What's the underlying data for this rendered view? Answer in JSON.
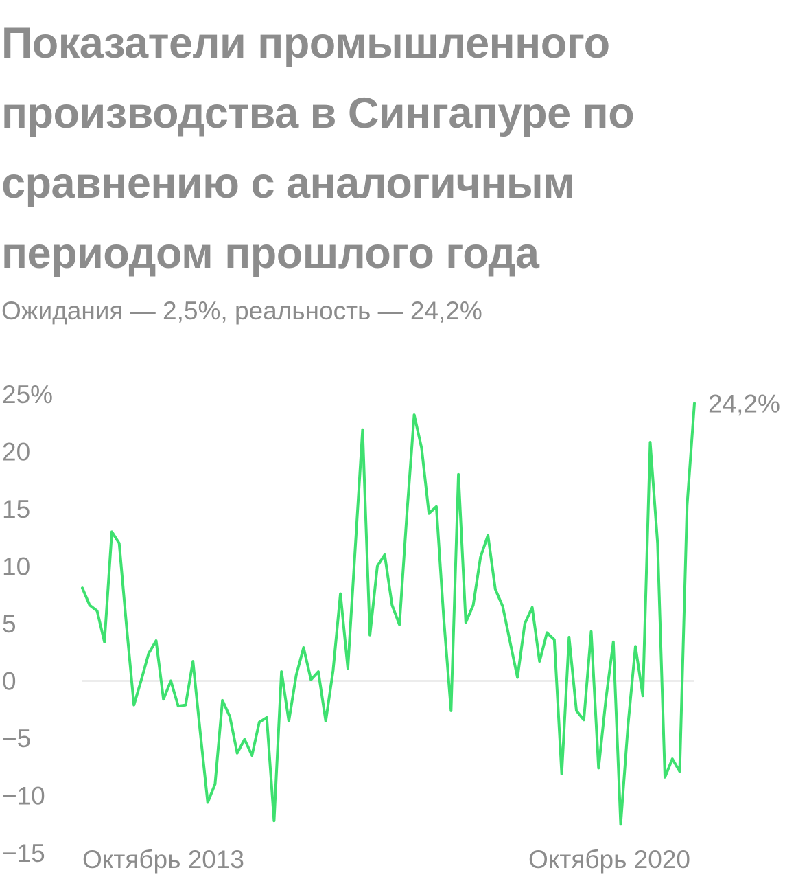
{
  "title": "Показатели промышленного производства в Сингапуре по сравнению с аналогичным периодом прошлого года",
  "subtitle": "Ожидания — 2,5%, реальность — 24,2%",
  "colors": {
    "line": "#3ee06f",
    "text": "#8c8c8c",
    "zero_line": "#b5b5b5"
  },
  "chart_data": {
    "type": "line",
    "title": "Показатели промышленного производства в Сингапуре по сравнению с аналогичным периодом прошлого года",
    "ylabel": "",
    "xlabel": "",
    "ylim": [
      -15,
      25
    ],
    "yticks": [
      25,
      20,
      15,
      10,
      5,
      0,
      -5,
      -10,
      -15
    ],
    "ytick_labels": [
      "25%",
      "20",
      "15",
      "10",
      "5",
      "0",
      "−5",
      "−10",
      "−15"
    ],
    "x_tick_labels": [
      "Октябрь 2013",
      "Октябрь 2020"
    ],
    "end_label": "24,2%",
    "zero_line": true,
    "grid": false,
    "series": [
      {
        "values": [
          8.1,
          6.6,
          6.1,
          3.4,
          13,
          12,
          4.7,
          -2.1,
          0.1,
          2.4,
          3.5,
          -1.6,
          0,
          -2.2,
          -2.1,
          1.7,
          -4.6,
          -10.6,
          -9.0,
          -1.7,
          -3.1,
          -6.3,
          -5.1,
          -6.5,
          -3.6,
          -3.2,
          -12.2,
          0.8,
          -3.5,
          0.5,
          2.9,
          0.1,
          0.8,
          -3.5,
          0.9,
          7.6,
          1.1,
          11.5,
          21.9,
          4.0,
          10.0,
          11.0,
          6.6,
          4.9,
          14.5,
          23.2,
          20.3,
          14.6,
          15.2,
          5.5,
          -2.6,
          18.0,
          5.1,
          6.6,
          10.8,
          12.7,
          8.0,
          6.5,
          3.4,
          0.3,
          5.0,
          6.4,
          1.7,
          4.2,
          3.6,
          -8.1,
          3.8,
          -2.6,
          -3.4,
          4.3,
          -7.6,
          -1.6,
          3.4,
          -12.5,
          -3.8,
          3.0,
          -1.3,
          20.8,
          12.0,
          -8.4,
          -6.8,
          -7.9,
          15.3,
          24.2
        ]
      }
    ]
  }
}
